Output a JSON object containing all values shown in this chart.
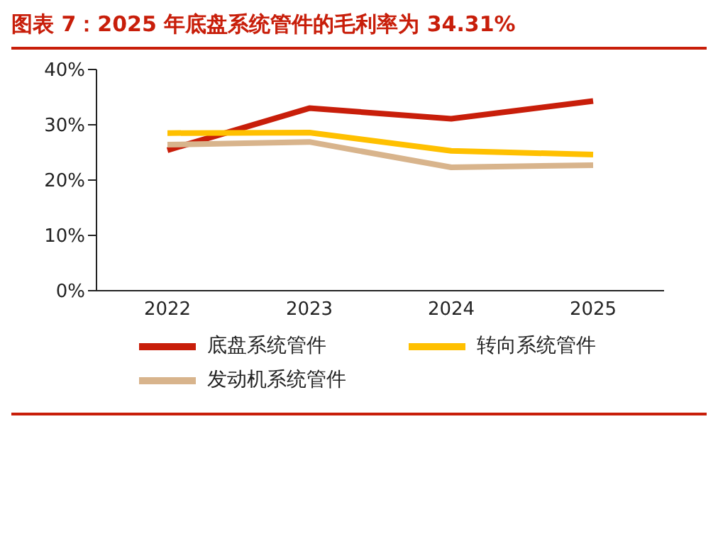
{
  "chart_data": {
    "type": "line",
    "title": "图表 7：2025 年底盘系统管件的毛利率为 34.31%",
    "categories": [
      "2022",
      "2023",
      "2024",
      "2025"
    ],
    "series": [
      {
        "name": "底盘系统管件",
        "color": "#c81e0a",
        "values": [
          25.4,
          33.0,
          31.1,
          34.3
        ]
      },
      {
        "name": "转向系统管件",
        "color": "#ffc000",
        "values": [
          28.5,
          28.6,
          25.3,
          24.6
        ]
      },
      {
        "name": "发动机系统管件",
        "color": "#d8b48c",
        "values": [
          26.4,
          26.9,
          22.3,
          22.7
        ]
      }
    ],
    "ylim": [
      0,
      40
    ],
    "yticks": [
      {
        "value": 0,
        "label": "0%"
      },
      {
        "value": 10,
        "label": "10%"
      },
      {
        "value": 20,
        "label": "20%"
      },
      {
        "value": 30,
        "label": "30%"
      },
      {
        "value": 40,
        "label": "40%"
      }
    ],
    "grid": false,
    "legend": "bottom",
    "marker": "none",
    "line_style": "solid"
  }
}
